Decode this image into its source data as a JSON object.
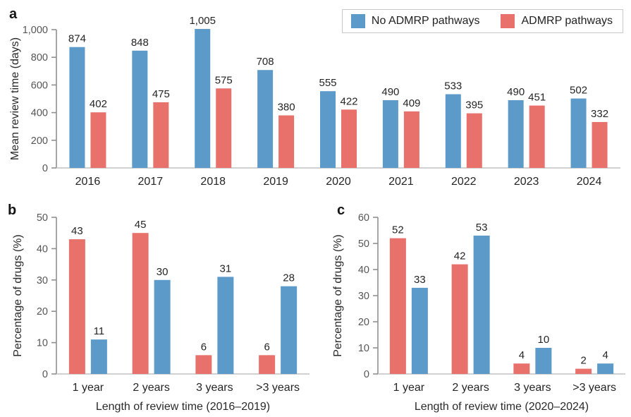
{
  "figure": {
    "panel_a_letter": "a",
    "panel_b_letter": "b",
    "panel_c_letter": "c"
  },
  "legend": {
    "items": [
      {
        "label": "No ADMRP pathways",
        "color": "#5b9ac9"
      },
      {
        "label": "ADMRP pathways",
        "color": "#e8716c"
      }
    ]
  },
  "colors": {
    "blue_series": "#5b9ac9",
    "red_series": "#e8716c",
    "axis_line": "#8f8f8f",
    "baseline": "#c2c2c2",
    "tick_label": "#565656",
    "value_label": "#252525"
  },
  "chart_data": [
    {
      "id": "a",
      "type": "bar",
      "title": "",
      "xlabel": "",
      "ylabel": "Mean review time (days)",
      "categories": [
        "2016",
        "2017",
        "2018",
        "2019",
        "2020",
        "2021",
        "2022",
        "2023",
        "2024"
      ],
      "series": [
        {
          "name": "No ADMRP pathways",
          "color": "#5b9ac9",
          "values": [
            874,
            848,
            1005,
            708,
            555,
            490,
            533,
            490,
            502
          ],
          "labels": [
            "874",
            "848",
            "1,005",
            "708",
            "555",
            "490",
            "533",
            "490",
            "502"
          ]
        },
        {
          "name": "ADMRP pathways",
          "color": "#e8716c",
          "values": [
            402,
            475,
            575,
            380,
            422,
            409,
            395,
            451,
            332
          ],
          "labels": [
            "402",
            "475",
            "575",
            "380",
            "422",
            "409",
            "395",
            "451",
            "332"
          ]
        }
      ],
      "ylim": [
        0,
        1000
      ],
      "yticks": [
        0,
        200,
        400,
        600,
        800,
        1000
      ],
      "ytick_labels": [
        "0",
        "200",
        "400",
        "600",
        "800",
        "1,000"
      ],
      "grid": false,
      "legend_position": "top-right"
    },
    {
      "id": "b",
      "type": "bar",
      "title": "",
      "xlabel": "Length of review time (2016–2019)",
      "ylabel": "Percentage of drugs (%)",
      "categories": [
        "1 year",
        "2 years",
        "3 years",
        ">3 years"
      ],
      "series": [
        {
          "name": "ADMRP pathways",
          "color": "#e8716c",
          "values": [
            43,
            45,
            6,
            6
          ],
          "labels": [
            "43",
            "45",
            "6",
            "6"
          ]
        },
        {
          "name": "No ADMRP pathways",
          "color": "#5b9ac9",
          "values": [
            11,
            30,
            31,
            28
          ],
          "labels": [
            "11",
            "30",
            "31",
            "28"
          ]
        }
      ],
      "ylim": [
        0,
        50
      ],
      "yticks": [
        0,
        10,
        20,
        30,
        40,
        50
      ],
      "ytick_labels": [
        "0",
        "10",
        "20",
        "30",
        "40",
        "50"
      ],
      "grid": false,
      "legend_position": "none"
    },
    {
      "id": "c",
      "type": "bar",
      "title": "",
      "xlabel": "Length of review time (2020–2024)",
      "ylabel": "Percentage of drugs (%)",
      "categories": [
        "1 year",
        "2 years",
        "3 years",
        ">3 years"
      ],
      "series": [
        {
          "name": "ADMRP pathways",
          "color": "#e8716c",
          "values": [
            52,
            42,
            4,
            2
          ],
          "labels": [
            "52",
            "42",
            "4",
            "2"
          ]
        },
        {
          "name": "No ADMRP pathways",
          "color": "#5b9ac9",
          "values": [
            33,
            53,
            10,
            4
          ],
          "labels": [
            "33",
            "53",
            "10",
            "4"
          ]
        }
      ],
      "ylim": [
        0,
        60
      ],
      "yticks": [
        0,
        10,
        20,
        30,
        40,
        50,
        60
      ],
      "ytick_labels": [
        "0",
        "10",
        "20",
        "30",
        "40",
        "50",
        "60"
      ],
      "grid": false,
      "legend_position": "none"
    }
  ]
}
